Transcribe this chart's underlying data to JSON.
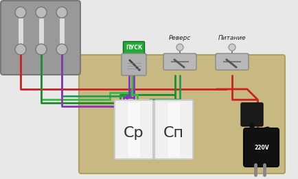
{
  "bg_color": "#e8e8e8",
  "box_color": "#c8b882",
  "box_edge": "#b0a060",
  "motor_panel_color": "#999999",
  "motor_panel_edge": "#777777",
  "switch_pusk_label": "ПУСК",
  "switch_revers_label": "Реверс",
  "switch_pitanie_label": "Питание",
  "cap1_label": "Ср",
  "cap2_label": "Сп",
  "plug_label": "220V",
  "red": "#cc2020",
  "green_light": "#33bb44",
  "green_dark": "#228833",
  "blue": "#3355cc",
  "purple": "#8833bb",
  "wire_lw": 2.0
}
